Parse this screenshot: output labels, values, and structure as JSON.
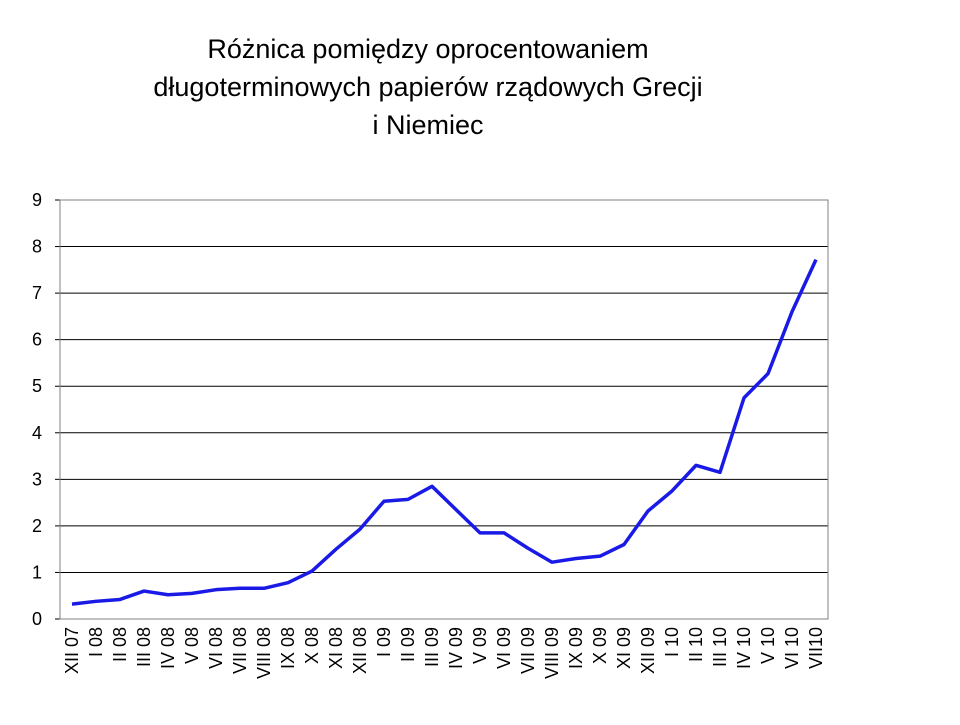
{
  "chart_data": {
    "type": "line",
    "title": [
      "Różnica pomiędzy oprocentowaniem",
      "długoterminowych papierów rządowych Grecji",
      "i Niemiec"
    ],
    "categories": [
      "XII 07",
      "I 08",
      "II 08",
      "III 08",
      "IV 08",
      "V 08",
      "VI 08",
      "VII 08",
      "VIII 08",
      "IX 08",
      "X 08",
      "XI 08",
      "XII 08",
      "I 09",
      "II 09",
      "III 09",
      "IV 09",
      "V 09",
      "VI 09",
      "VII 09",
      "VIII 09",
      "IX 09",
      "X 09",
      "XI 09",
      "XII 09",
      "I 10",
      "II 10",
      "III 10",
      "IV 10",
      "V 10",
      "VI 10",
      "VII10"
    ],
    "values": [
      0.32,
      0.38,
      0.42,
      0.6,
      0.52,
      0.55,
      0.63,
      0.66,
      0.66,
      0.78,
      1.03,
      1.5,
      1.93,
      2.53,
      2.57,
      2.85,
      2.35,
      1.85,
      1.85,
      1.52,
      1.22,
      1.3,
      1.35,
      1.6,
      2.32,
      2.75,
      3.3,
      3.15,
      4.75,
      5.27,
      6.6,
      7.72
    ],
    "color": "#1a1ae6",
    "ylim": [
      0,
      9
    ],
    "yticks": [
      0,
      1,
      2,
      3,
      4,
      5,
      6,
      7,
      8,
      9
    ],
    "grid": true
  }
}
